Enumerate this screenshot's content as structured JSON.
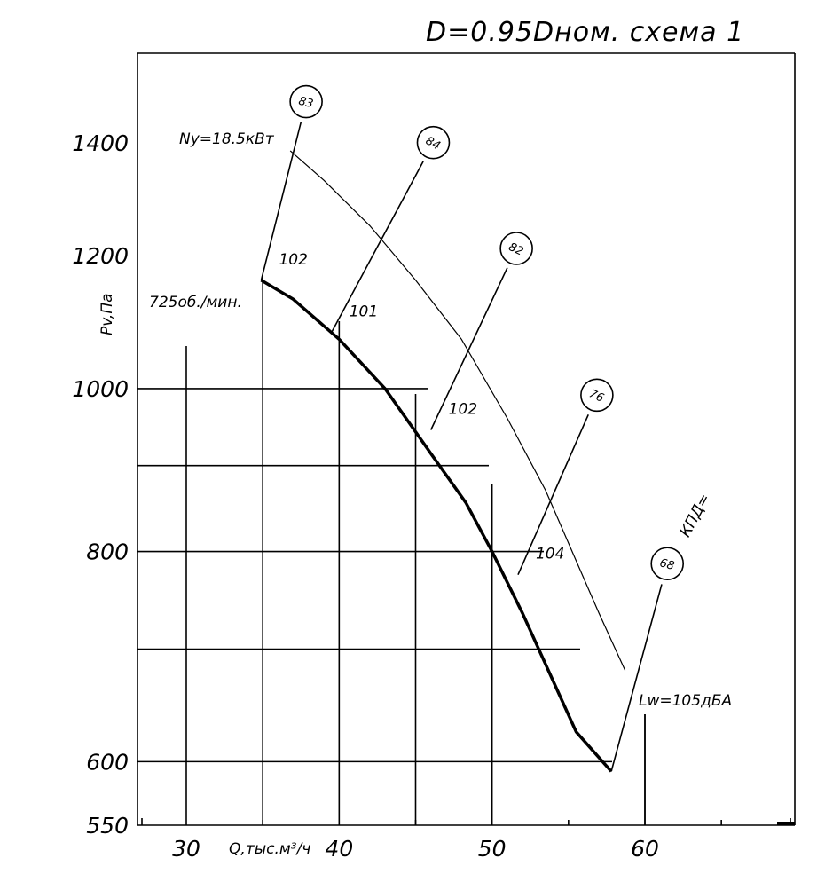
{
  "title": "D=0.95Dном. схема 1",
  "chart_data": {
    "type": "line",
    "title": "D=0.95Dном. схема 1",
    "xlabel": "Q,тыс.м³/ч",
    "ylabel": "Pv,Па",
    "y_scale": "log",
    "xlim": [
      26,
      70
    ],
    "ylim": [
      550,
      1600
    ],
    "x_ticks": [
      30,
      40,
      50,
      60
    ],
    "y_ticks": [
      550,
      600,
      800,
      1000,
      1200,
      1400
    ],
    "y_grid_unlabeled": [
      900,
      700
    ],
    "x_grid_unlabeled": [
      35,
      45,
      55
    ],
    "grid": true,
    "speed_label": "725об./мин.",
    "power_label": "Ny=18.5кВт",
    "noise_label": "Lw=105дБА",
    "efficiency_label": "КПД=",
    "series": [
      {
        "name": "",
        "points": [
          [
            34.9,
            1160
          ],
          [
            37,
            1130
          ],
          [
            40,
            1070
          ],
          [
            43,
            1000
          ],
          [
            46,
            915
          ],
          [
            48.3,
            855
          ],
          [
            50,
            800
          ],
          [
            52,
            735
          ],
          [
            54,
            670
          ],
          [
            55.5,
            625
          ],
          [
            57.8,
            592
          ]
        ]
      },
      {
        "name": "Ny=18.5кВт",
        "points": [
          [
            36.8,
            1385
          ],
          [
            39,
            1330
          ],
          [
            42,
            1250
          ],
          [
            45,
            1160
          ],
          [
            48,
            1070
          ],
          [
            51,
            960
          ],
          [
            53.5,
            870
          ],
          [
            55.5,
            790
          ],
          [
            57,
            735
          ],
          [
            58.7,
            680
          ]
        ]
      }
    ],
    "efficiency_markers": [
      {
        "value": "83",
        "label": "102",
        "x_lo": 34.9,
        "p_lo": 1160,
        "x_hi": 36.8,
        "p_hi": 1385,
        "lx": 37.5,
        "ly": 1440
      },
      {
        "value": "84",
        "label": "101",
        "x_lo": 39.5,
        "p_lo": 1080,
        "x_hi": 45.2,
        "p_hi": 1310,
        "lx": 45.5,
        "ly": 1365
      },
      {
        "value": "82",
        "label": "102",
        "x_lo": 46.0,
        "p_lo": 945,
        "x_hi": 50.3,
        "p_hi": 1100,
        "lx": 51,
        "ly": 1180
      },
      {
        "value": "76",
        "label": "104",
        "x_lo": 51.7,
        "p_lo": 775,
        "x_hi": 55.7,
        "p_hi": 925,
        "lx": 56.3,
        "ly": 965
      },
      {
        "value": "68",
        "label": "",
        "x_lo": 57.8,
        "p_lo": 592,
        "x_hi": 58.7,
        "p_hi": 680,
        "lx": 61.1,
        "ly": 765
      }
    ]
  }
}
